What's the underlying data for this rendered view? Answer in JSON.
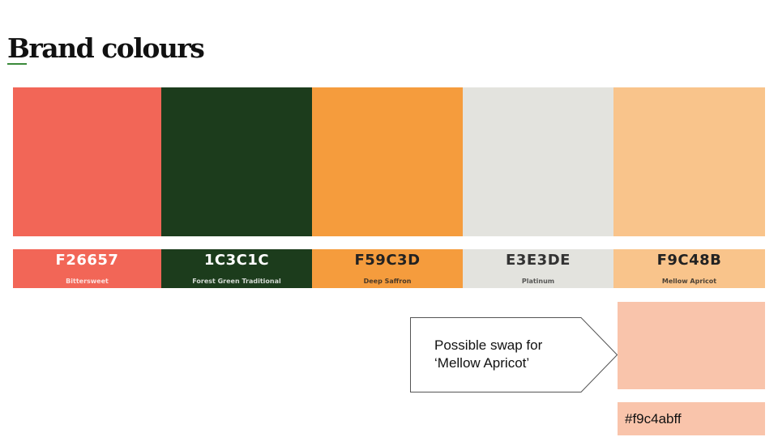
{
  "title": "Brand colours",
  "palette": [
    {
      "hex": "F26657",
      "name": "Bittersweet",
      "color": "#F26657",
      "text_color": "#ffffff"
    },
    {
      "hex": "1C3C1C",
      "name": "Forest Green Traditional",
      "color": "#1C3C1C",
      "text_color": "#ffffff"
    },
    {
      "hex": "F59C3D",
      "name": "Deep Saffron",
      "color": "#F59C3D",
      "text_color": "#222222"
    },
    {
      "hex": "E3E3DE",
      "name": "Platinum",
      "color": "#E3E3DE",
      "text_color": "#333333"
    },
    {
      "hex": "F9C48B",
      "name": "Mellow Apricot",
      "color": "#F9C48B",
      "text_color": "#222222"
    }
  ],
  "callout": {
    "text_line1": "Possible swap for",
    "text_line2": "‘Mellow Apricot’"
  },
  "alternative": {
    "hex_label": "#f9c4abff",
    "color": "#f9c4ab"
  }
}
